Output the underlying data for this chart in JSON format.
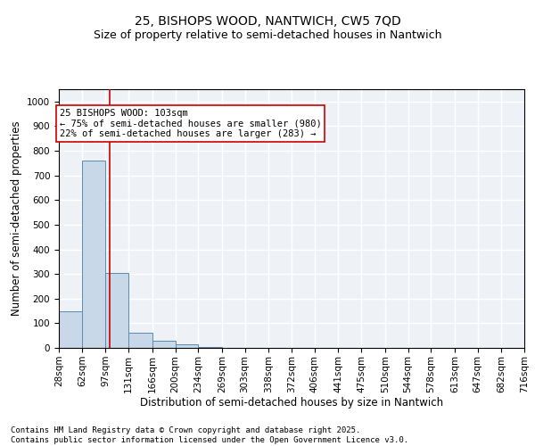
{
  "title_line1": "25, BISHOPS WOOD, NANTWICH, CW5 7QD",
  "title_line2": "Size of property relative to semi-detached houses in Nantwich",
  "xlabel": "Distribution of semi-detached houses by size in Nantwich",
  "ylabel": "Number of semi-detached properties",
  "bin_labels": [
    "28sqm",
    "62sqm",
    "97sqm",
    "131sqm",
    "166sqm",
    "200sqm",
    "234sqm",
    "269sqm",
    "303sqm",
    "338sqm",
    "372sqm",
    "406sqm",
    "441sqm",
    "475sqm",
    "510sqm",
    "544sqm",
    "578sqm",
    "613sqm",
    "647sqm",
    "682sqm",
    "716sqm"
  ],
  "bin_edges": [
    28,
    62,
    97,
    131,
    166,
    200,
    234,
    269,
    303,
    338,
    372,
    406,
    441,
    475,
    510,
    544,
    578,
    613,
    647,
    682,
    716
  ],
  "bar_heights": [
    150,
    760,
    305,
    60,
    30,
    15,
    5,
    0,
    0,
    0,
    0,
    0,
    0,
    0,
    0,
    0,
    0,
    0,
    0,
    0
  ],
  "bar_color": "#c8d8e8",
  "bar_edge_color": "#5a8ab0",
  "property_size": 103,
  "red_line_color": "#cc0000",
  "annotation_line1": "25 BISHOPS WOOD: 103sqm",
  "annotation_line2": "← 75% of semi-detached houses are smaller (980)",
  "annotation_line3": "22% of semi-detached houses are larger (283) →",
  "annotation_box_color": "#cc0000",
  "ylim": [
    0,
    1050
  ],
  "yticks": [
    0,
    100,
    200,
    300,
    400,
    500,
    600,
    700,
    800,
    900,
    1000
  ],
  "footer_text": "Contains HM Land Registry data © Crown copyright and database right 2025.\nContains public sector information licensed under the Open Government Licence v3.0.",
  "background_color": "#eef2f7",
  "grid_color": "#ffffff",
  "title_fontsize": 10,
  "subtitle_fontsize": 9,
  "axis_label_fontsize": 8.5,
  "tick_fontsize": 7.5,
  "annotation_fontsize": 7.5,
  "footer_fontsize": 6.5
}
